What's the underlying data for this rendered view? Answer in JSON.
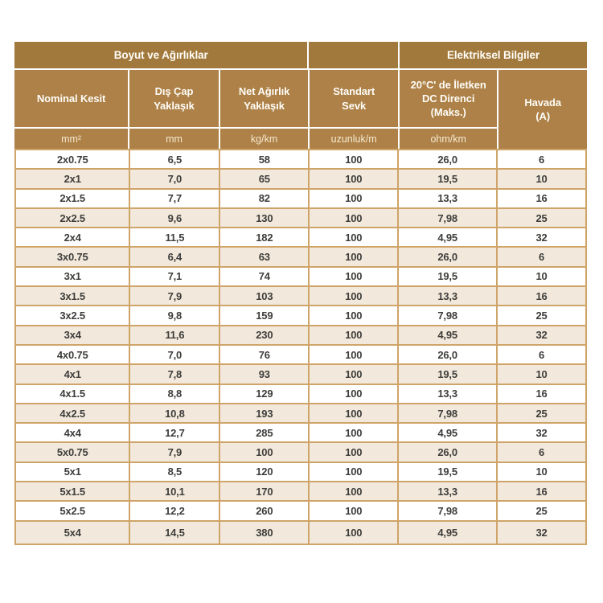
{
  "table": {
    "group_headers": [
      {
        "label": "Boyut ve Ağırlıklar"
      },
      {
        "label": ""
      },
      {
        "label": "Elektriksel Bilgiler"
      }
    ],
    "columns": [
      {
        "label": "Nominal Kesit",
        "unit": "mm²"
      },
      {
        "label": "Dış Çap Yaklaşık",
        "unit": "mm"
      },
      {
        "label": "Net Ağırlık Yaklaşık",
        "unit": "kg/km"
      },
      {
        "label": "Standart Sevk",
        "unit": "uzunluk/m"
      },
      {
        "label": "20°C' de İletken DC Direnci (Maks.)",
        "unit": "ohm/km"
      },
      {
        "label": "Havada (A)",
        "unit": ""
      }
    ],
    "rows": [
      [
        "2x0.75",
        "6,5",
        "58",
        "100",
        "26,0",
        "6"
      ],
      [
        "2x1",
        "7,0",
        "65",
        "100",
        "19,5",
        "10"
      ],
      [
        "2x1.5",
        "7,7",
        "82",
        "100",
        "13,3",
        "16"
      ],
      [
        "2x2.5",
        "9,6",
        "130",
        "100",
        "7,98",
        "25"
      ],
      [
        "2x4",
        "11,5",
        "182",
        "100",
        "4,95",
        "32"
      ],
      [
        "3x0.75",
        "6,4",
        "63",
        "100",
        "26,0",
        "6"
      ],
      [
        "3x1",
        "7,1",
        "74",
        "100",
        "19,5",
        "10"
      ],
      [
        "3x1.5",
        "7,9",
        "103",
        "100",
        "13,3",
        "16"
      ],
      [
        "3x2.5",
        "9,8",
        "159",
        "100",
        "7,98",
        "25"
      ],
      [
        "3x4",
        "11,6",
        "230",
        "100",
        "4,95",
        "32"
      ],
      [
        "4x0.75",
        "7,0",
        "76",
        "100",
        "26,0",
        "6"
      ],
      [
        "4x1",
        "7,8",
        "93",
        "100",
        "19,5",
        "10"
      ],
      [
        "4x1.5",
        "8,8",
        "129",
        "100",
        "13,3",
        "16"
      ],
      [
        "4x2.5",
        "10,8",
        "193",
        "100",
        "7,98",
        "25"
      ],
      [
        "4x4",
        "12,7",
        "285",
        "100",
        "4,95",
        "32"
      ],
      [
        "5x0.75",
        "7,9",
        "100",
        "100",
        "26,0",
        "6"
      ],
      [
        "5x1",
        "8,5",
        "120",
        "100",
        "19,5",
        "10"
      ],
      [
        "5x1.5",
        "10,1",
        "170",
        "100",
        "13,3",
        "16"
      ],
      [
        "5x2.5",
        "12,2",
        "260",
        "100",
        "7,98",
        "25"
      ],
      [
        "5x4",
        "14,5",
        "380",
        "100",
        "4,95",
        "32"
      ]
    ],
    "colors": {
      "group_header_bg": "#a2793c",
      "header_bg": "#ad8147",
      "header_text": "#fffdf8",
      "unit_text": "#f6e9d0",
      "grid_line": "#cfa468",
      "stripe_bg": "#f2e9dc",
      "row_bg": "#ffffff",
      "data_text": "#3e3d3b",
      "page_bg": "#ffffff"
    }
  }
}
